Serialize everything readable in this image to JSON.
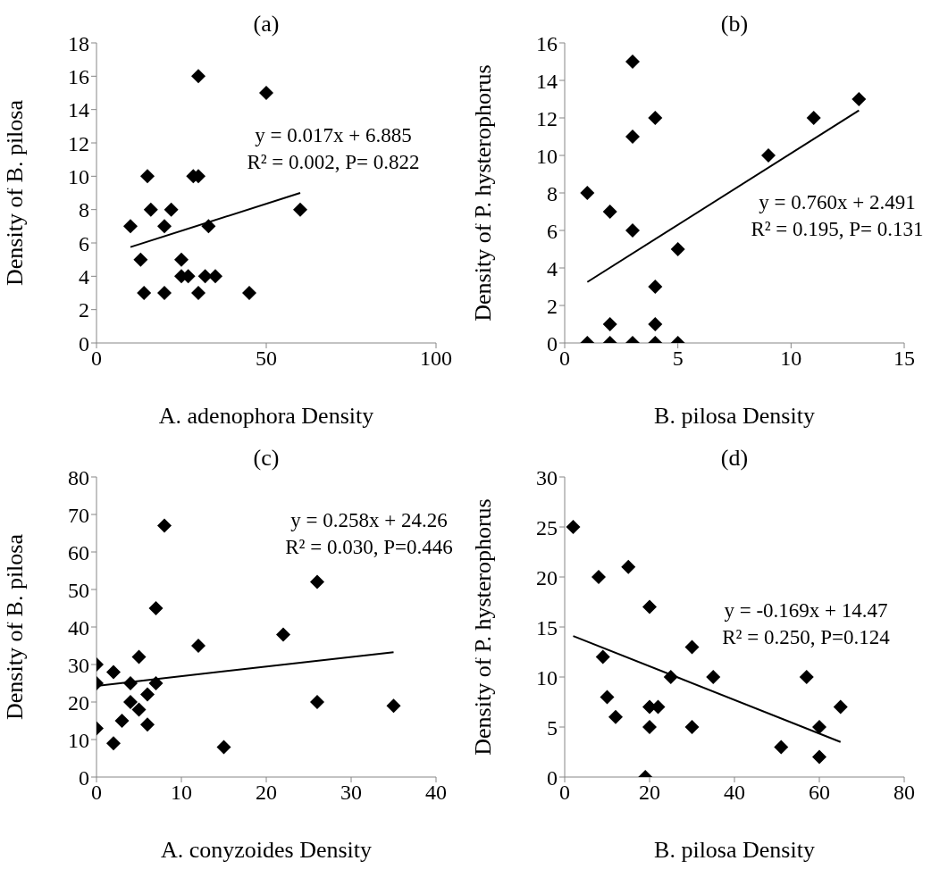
{
  "chart_data": [
    {
      "type": "scatter",
      "title": "(a)",
      "xlabel": "A. adenophora Density",
      "ylabel": "Density of B.  pilosa",
      "xlim": [
        0,
        100
      ],
      "ylim": [
        0,
        18
      ],
      "xticks": [
        0,
        50,
        100
      ],
      "yticks": [
        0,
        2,
        4,
        6,
        8,
        10,
        12,
        14,
        16,
        18
      ],
      "series": [
        {
          "type": "scatter",
          "marker": "diamond",
          "color": "#000000",
          "x": [
            10,
            13,
            14,
            15,
            16,
            20,
            20,
            22,
            25,
            25,
            27,
            30,
            30,
            28.5,
            30,
            32,
            33,
            35,
            45,
            50,
            60
          ],
          "values": [
            7,
            5,
            3,
            10,
            8,
            7,
            3,
            8,
            5,
            4,
            4,
            16,
            10,
            10,
            3,
            4,
            7,
            4,
            3,
            15,
            8
          ]
        },
        {
          "type": "line",
          "marker": "none",
          "color": "#000000",
          "x": [
            10,
            60
          ],
          "values": [
            5.75,
            9.0
          ]
        }
      ],
      "annotations": [
        "y = 0.017x + 6.885",
        "R² = 0.002, P= 0.822"
      ]
    },
    {
      "type": "scatter",
      "title": "(b)",
      "xlabel": "B. pilosa Density",
      "ylabel": "Density of P. hysterophorus",
      "xlim": [
        0,
        15
      ],
      "ylim": [
        0,
        16
      ],
      "xticks": [
        0,
        5,
        10,
        15
      ],
      "yticks": [
        0,
        2,
        4,
        6,
        8,
        10,
        12,
        14,
        16
      ],
      "series": [
        {
          "type": "scatter",
          "marker": "diamond",
          "color": "#000000",
          "x": [
            1,
            2,
            3,
            3,
            3,
            4,
            5,
            4,
            2,
            4,
            1,
            2,
            3,
            4,
            5,
            9,
            11,
            13
          ],
          "values": [
            8,
            7,
            6,
            15,
            11,
            12,
            5,
            3,
            1,
            1,
            0,
            0,
            0,
            0,
            0,
            10,
            12,
            13
          ]
        },
        {
          "type": "line",
          "marker": "none",
          "color": "#000000",
          "x": [
            1,
            13
          ],
          "values": [
            3.25,
            12.4
          ]
        }
      ],
      "annotations": [
        "y = 0.760x + 2.491",
        "R² = 0.195, P= 0.131"
      ]
    },
    {
      "type": "scatter",
      "title": "(c)",
      "xlabel": "A. conyzoides Density",
      "ylabel": "Density of B. pilosa",
      "xlim": [
        0,
        40
      ],
      "ylim": [
        0,
        80
      ],
      "xticks": [
        0,
        10,
        20,
        30,
        40
      ],
      "yticks": [
        0,
        10,
        20,
        30,
        40,
        50,
        60,
        70,
        80
      ],
      "series": [
        {
          "type": "scatter",
          "marker": "diamond",
          "color": "#000000",
          "x": [
            0,
            0,
            0,
            2,
            2,
            3,
            4,
            4,
            5,
            5,
            6,
            6,
            7,
            7,
            8,
            12,
            15,
            22,
            26,
            26,
            35
          ],
          "values": [
            30,
            25,
            13,
            28,
            9,
            15,
            25,
            20,
            32,
            18,
            22,
            14,
            45,
            25,
            67,
            35,
            8,
            38,
            52,
            20,
            19
          ]
        },
        {
          "type": "line",
          "marker": "none",
          "color": "#000000",
          "x": [
            0,
            35
          ],
          "values": [
            24.3,
            33.3
          ]
        }
      ],
      "annotations": [
        "y = 0.258x + 24.26",
        "R² = 0.030, P=0.446"
      ]
    },
    {
      "type": "scatter",
      "title": "(d)",
      "xlabel": "B. pilosa Density",
      "ylabel": "Density of P. hysterophorus",
      "xlim": [
        0,
        80
      ],
      "ylim": [
        0,
        30
      ],
      "xticks": [
        0,
        20,
        40,
        60,
        80
      ],
      "yticks": [
        0,
        5,
        10,
        15,
        20,
        25,
        30
      ],
      "series": [
        {
          "type": "scatter",
          "marker": "diamond",
          "color": "#000000",
          "x": [
            2,
            8,
            15,
            20,
            9,
            10,
            12,
            20,
            22,
            20,
            19,
            25,
            30,
            30,
            35,
            57,
            60,
            60,
            51,
            65
          ],
          "values": [
            25,
            20,
            21,
            17,
            12,
            8,
            6,
            7,
            7,
            5,
            0,
            10,
            13,
            5,
            10,
            10,
            5,
            2,
            3,
            7
          ]
        },
        {
          "type": "line",
          "marker": "none",
          "color": "#000000",
          "x": [
            2,
            65
          ],
          "values": [
            14.1,
            3.5
          ]
        }
      ],
      "annotations": [
        "y = -0.169x + 14.47",
        "R² = 0.250, P=0.124"
      ]
    }
  ]
}
